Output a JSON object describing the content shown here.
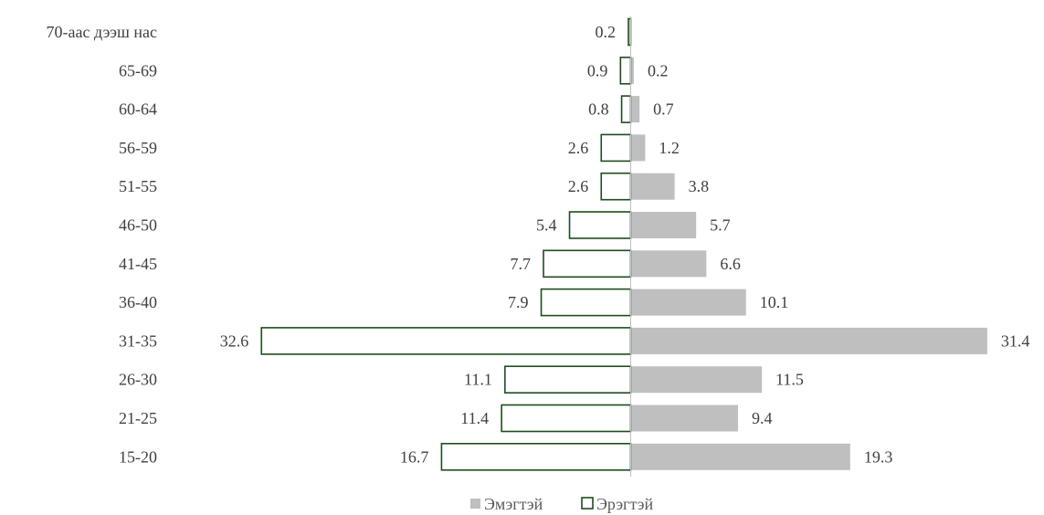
{
  "chart_data": {
    "type": "bar",
    "orientation": "horizontal-diverging",
    "categories": [
      "70-аас дээш нас",
      "65-69",
      "60-64",
      "56-59",
      "51-55",
      "46-50",
      "41-45",
      "36-40",
      "31-35",
      "26-30",
      "21-25",
      "15-20"
    ],
    "series": [
      {
        "name": "Эрэгтэй",
        "side": "left",
        "values": [
          0.2,
          0.9,
          0.8,
          2.6,
          2.6,
          5.4,
          7.7,
          7.9,
          32.6,
          11.1,
          11.4,
          16.7
        ],
        "color": "#1e4d1e"
      },
      {
        "name": "Эмэгтэй",
        "side": "right",
        "values": [
          null,
          0.2,
          0.7,
          1.2,
          3.8,
          5.7,
          6.6,
          10.1,
          31.4,
          11.5,
          9.4,
          19.3
        ],
        "color": "#bfbfbf"
      }
    ],
    "legend": {
      "position": "bottom",
      "order": [
        "Эмэгтэй",
        "Эрэгтэй"
      ]
    },
    "title": "",
    "xlabel": "",
    "ylabel": "",
    "grid": false,
    "xlim": [
      -32.6,
      31.4
    ]
  },
  "colors": {
    "male_outline": "#1e4d1e",
    "female_fill": "#bfbfbf",
    "label_text": "#404040",
    "axis": "#bfbfbf"
  }
}
